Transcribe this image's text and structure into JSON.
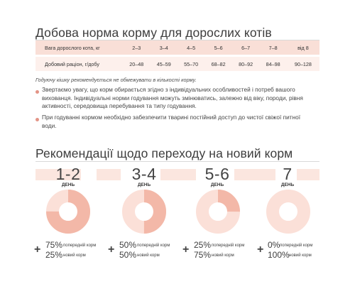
{
  "colors": {
    "table_header_bg": "#f9dfd7",
    "table_row_bg": "#fdf0ec",
    "previous_food": "#f3b8a8",
    "new_food": "#fbe0d8",
    "bullet": "#e39486"
  },
  "daily_norm": {
    "title": "Добова норма корму для дорослих котів",
    "weight_label": "Вага дорослого кота, кг",
    "ration_label": "Добовий раціон, г/добу",
    "weights": [
      "2–3",
      "3–4",
      "4–5",
      "5–6",
      "6–7",
      "7–8",
      "від 8"
    ],
    "rations": [
      "20–48",
      "45–59",
      "55–70",
      "68–82",
      "80–92",
      "84–98",
      "90–128"
    ]
  },
  "note": "Годуючу кішку рекомендується не обмежувати в кількості корму.",
  "bullets": [
    "Звертаємо увагу, що корм обирається згідно з індивідуальних особливостей і потреб вашого вихованця. Індивідуальні норми годування можуть змінюватись, залежно від віку, породи, рівня активності, середовища перебування та типу годування.",
    "При годуванні кормом необхідно забезпечити тварині постійний доступ до чистої свіжої питної води."
  ],
  "transition": {
    "title": "Рекомендації щодо переходу на новий корм",
    "stages": [
      {
        "days": "1-2",
        "day_label": "ДЕНЬ",
        "previous_pct": "75%",
        "previous_label": "попередній корм",
        "new_pct": "25%",
        "new_label": "новий корм",
        "previous_fraction": 0.75
      },
      {
        "days": "3-4",
        "day_label": "ДЕНЬ",
        "previous_pct": "50%",
        "previous_label": "попередній корм",
        "new_pct": "50%",
        "new_label": "новий корм",
        "previous_fraction": 0.5
      },
      {
        "days": "5-6",
        "day_label": "ДЕНЬ",
        "previous_pct": "25%",
        "previous_label": "попередній корм",
        "new_pct": "75%",
        "new_label": "новий корм",
        "previous_fraction": 0.25
      },
      {
        "days": "7",
        "day_label": "ДЕНЬ",
        "previous_pct": "0%",
        "previous_label": "попередній корм",
        "new_pct": "100%",
        "new_label": "новий корм",
        "previous_fraction": 0
      }
    ]
  }
}
